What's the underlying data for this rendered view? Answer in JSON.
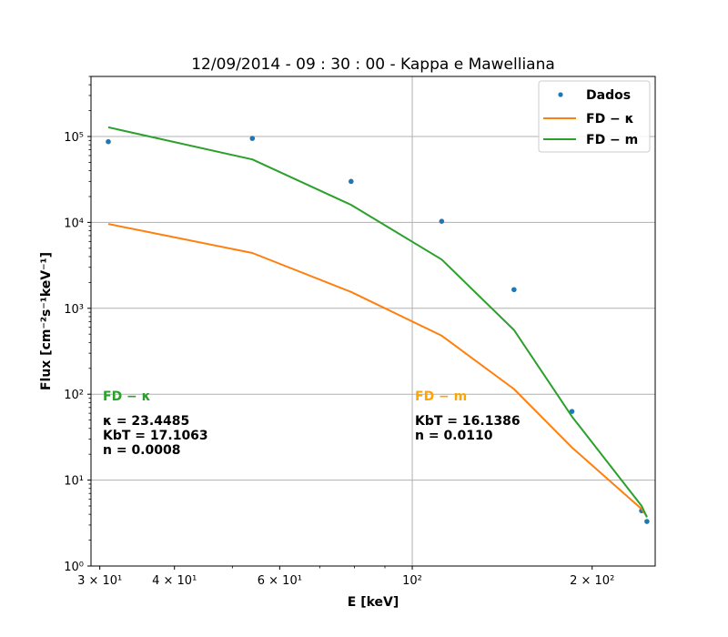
{
  "chart_data": {
    "type": "line",
    "title": "12/09/2014 - 09 : 30 : 00 - Kappa e Mawelliana",
    "xlabel": "E [keV]",
    "ylabel": "Flux [cm⁻²s⁻¹keV⁻¹]",
    "xscale": "log",
    "yscale": "log",
    "xlim": [
      29,
      255
    ],
    "ylim": [
      1,
      500000
    ],
    "grid": "major",
    "legend_position": "top-right",
    "x_ticks": [
      {
        "value": 30,
        "label": "3 × 10¹"
      },
      {
        "value": 40,
        "label": "4 × 10¹"
      },
      {
        "value": 60,
        "label": "6 × 10¹"
      },
      {
        "value": 100,
        "label": "10²"
      },
      {
        "value": 200,
        "label": "2 × 10²"
      }
    ],
    "y_ticks": [
      {
        "value": 1,
        "label": "10⁰"
      },
      {
        "value": 10,
        "label": "10¹"
      },
      {
        "value": 100,
        "label": "10²"
      },
      {
        "value": 1000,
        "label": "10³"
      },
      {
        "value": 10000,
        "label": "10⁴"
      },
      {
        "value": 100000,
        "label": "10⁵"
      }
    ],
    "series": [
      {
        "name": "Dados",
        "kind": "scatter",
        "color": "#1f77b4",
        "x": [
          31,
          54,
          79,
          112,
          148,
          185,
          242,
          247
        ],
        "y": [
          87000,
          95000,
          30000,
          10300,
          1650,
          63,
          4.4,
          3.3
        ]
      },
      {
        "name": "FD − κ",
        "kind": "line",
        "color": "#ff7f0e",
        "x": [
          31,
          54,
          79,
          112,
          148,
          185,
          242,
          247
        ],
        "y": [
          9600,
          4400,
          1550,
          480,
          115,
          24,
          4.6,
          3.8
        ]
      },
      {
        "name": "FD − m",
        "kind": "line",
        "color": "#2ca02c",
        "x": [
          31,
          54,
          79,
          112,
          148,
          185,
          242,
          247
        ],
        "y": [
          128000,
          54000,
          16000,
          3700,
          560,
          55,
          5.0,
          3.7
        ]
      }
    ],
    "annotations": [
      {
        "heading": "FD − κ",
        "heading_color": "#2ca02c",
        "lines": [
          "κ = 23.4485",
          "KbT = 17.1063",
          "n = 0.0008"
        ]
      },
      {
        "heading": "FD − m",
        "heading_color": "#ffa500",
        "lines": [
          "KbT = 16.1386",
          "n = 0.0110"
        ]
      }
    ]
  }
}
